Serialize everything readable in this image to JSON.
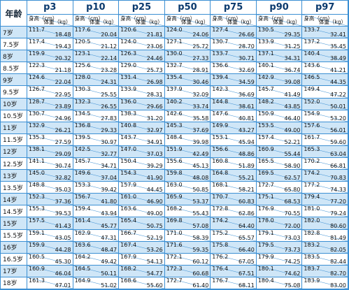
{
  "header": {
    "age_label": "年龄",
    "percentiles": [
      "p3",
      "p10",
      "p25",
      "p50",
      "p75",
      "p90",
      "p97"
    ],
    "height_label": "身高（cm）",
    "weight_label": "体重（kg）"
  },
  "rows": [
    {
      "age": "7岁",
      "cells": [
        [
          "111.7",
          "18.48"
        ],
        [
          "117.6",
          "20.04"
        ],
        [
          "120.6",
          "21.81"
        ],
        [
          "124.0",
          "24.06"
        ],
        [
          "127.4",
          "26.66"
        ],
        [
          "130.5",
          "29.35"
        ],
        [
          "133.7",
          "32.41"
        ]
      ]
    },
    {
      "age": "7.5岁",
      "cells": [
        [
          "117.4",
          "19.43"
        ],
        [
          "120.5",
          "21.12"
        ],
        [
          "124.0",
          "23.06"
        ],
        [
          "127.1",
          "25.72"
        ],
        [
          "130.7",
          "28.70"
        ],
        [
          "133.9",
          "31.25"
        ],
        [
          "137.2",
          "35.45"
        ]
      ]
    },
    {
      "age": "8岁",
      "cells": [
        [
          "119.9",
          "20.32"
        ],
        [
          "123.1",
          "22.14"
        ],
        [
          "126.3",
          "24.46"
        ],
        [
          "130.0",
          "27.33"
        ],
        [
          "133.7",
          "30.71"
        ],
        [
          "137.1",
          "34.31"
        ],
        [
          "140.4",
          "38.49"
        ]
      ]
    },
    {
      "age": "8.5岁",
      "cells": [
        [
          "122.3",
          "21.18"
        ],
        [
          "125.6",
          "23.28"
        ],
        [
          "129.0",
          "25.73"
        ],
        [
          "132.7",
          "28.91"
        ],
        [
          "136.6",
          "32.69"
        ],
        [
          "140.1",
          "36.74"
        ],
        [
          "143.6",
          "41.21"
        ]
      ]
    },
    {
      "age": "9岁",
      "cells": [
        [
          "124.6",
          "22.04"
        ],
        [
          "128.0",
          "24.31"
        ],
        [
          "131.4",
          "26.98"
        ],
        [
          "135.4",
          "30.46"
        ],
        [
          "139.4",
          "34.59"
        ],
        [
          "142.9",
          "39.08"
        ],
        [
          "146.5",
          "44.35"
        ]
      ]
    },
    {
      "age": "9.5岁",
      "cells": [
        [
          "126.7",
          "22.95"
        ],
        [
          "130.3",
          "25.55"
        ],
        [
          "133.9",
          "28.31"
        ],
        [
          "137.9",
          "32.09"
        ],
        [
          "142.3",
          "36.69"
        ],
        [
          "145.7",
          "41.49"
        ],
        [
          "149.4",
          "47.22"
        ]
      ]
    },
    {
      "age": "10岁",
      "cells": [
        [
          "128.7",
          "23.89"
        ],
        [
          "132.3",
          "26.55"
        ],
        [
          "136.0",
          "29.66"
        ],
        [
          "140.2",
          "33.74"
        ],
        [
          "144.8",
          "38.61"
        ],
        [
          "148.2",
          "43.85"
        ],
        [
          "152.0",
          "50.01"
        ]
      ]
    },
    {
      "age": "10.5岁",
      "cells": [
        [
          "130.7",
          "24.96"
        ],
        [
          "134.5",
          "27.83"
        ],
        [
          "138.3",
          "31.20"
        ],
        [
          "142.6",
          "35.58"
        ],
        [
          "147.6",
          "40.81"
        ],
        [
          "150.9",
          "46.40"
        ],
        [
          "154.9",
          "53.20"
        ]
      ]
    },
    {
      "age": "11岁",
      "cells": [
        [
          "132.9",
          "26.21"
        ],
        [
          "136.8",
          "29.33"
        ],
        [
          "140.8",
          "32.97"
        ],
        [
          "145.3",
          "37.69"
        ],
        [
          "149.9",
          "43.27"
        ],
        [
          "153.5",
          "49.00"
        ],
        [
          "157.6",
          "56.01"
        ]
      ]
    },
    {
      "age": "11.5岁",
      "cells": [
        [
          "135.3",
          "27.59"
        ],
        [
          "139.5",
          "30.97"
        ],
        [
          "143.7",
          "34.91"
        ],
        [
          "148.4",
          "39.98"
        ],
        [
          "153.1",
          "45.94"
        ],
        [
          "157.4",
          "52.21"
        ],
        [
          "161.7",
          "59.60"
        ]
      ]
    },
    {
      "age": "12岁",
      "cells": [
        [
          "138.1",
          "29.09"
        ],
        [
          "142.5",
          "32.77"
        ],
        [
          "147.0",
          "37.03"
        ],
        [
          "151.9",
          "42.49"
        ],
        [
          "156.6",
          "48.86"
        ],
        [
          "160.9",
          "55.44"
        ],
        [
          "165.3",
          "63.04"
        ]
      ]
    },
    {
      "age": "12.5岁",
      "cells": [
        [
          "141.1",
          "30.74"
        ],
        [
          "145.7",
          "34.71"
        ],
        [
          "150.4",
          "39.29"
        ],
        [
          "155.6",
          "45.13"
        ],
        [
          "160.8",
          "51.89"
        ],
        [
          "165.5",
          "58.90"
        ],
        [
          "170.2",
          "66.81"
        ]
      ]
    },
    {
      "age": "13岁",
      "cells": [
        [
          "145.0",
          "32.82"
        ],
        [
          "149.6",
          "37.04"
        ],
        [
          "154.3",
          "41.90"
        ],
        [
          "159.8",
          "48.08"
        ],
        [
          "164.8",
          "55.21"
        ],
        [
          "169.5",
          "62.57"
        ],
        [
          "174.2",
          "70.83"
        ]
      ]
    },
    {
      "age": "13.5岁",
      "cells": [
        [
          "148.8",
          "35.03"
        ],
        [
          "153.3",
          "39.42"
        ],
        [
          "157.9",
          "44.45"
        ],
        [
          "163.0",
          "50.85"
        ],
        [
          "168.1",
          "58.21"
        ],
        [
          "172.7",
          "65.80"
        ],
        [
          "177.2",
          "74.33"
        ]
      ]
    },
    {
      "age": "14岁",
      "cells": [
        [
          "152.3",
          "37.36"
        ],
        [
          "156.7",
          "41.80"
        ],
        [
          "161.0",
          "46.90"
        ],
        [
          "165.9",
          "53.37"
        ],
        [
          "170.7",
          "60.83"
        ],
        [
          "175.1",
          "68.53"
        ],
        [
          "179.4",
          "77.20"
        ]
      ]
    },
    {
      "age": "14.5岁",
      "cells": [
        [
          "155.3",
          "39.53"
        ],
        [
          "159.4",
          "43.94"
        ],
        [
          "163.6",
          "49.00"
        ],
        [
          "168.2",
          "55.43"
        ],
        [
          "172.8",
          "62.86"
        ],
        [
          "176.9",
          "70.55"
        ],
        [
          "181.0",
          "79.24"
        ]
      ]
    },
    {
      "age": "15岁",
      "cells": [
        [
          "157.5",
          "41.43"
        ],
        [
          "161.4",
          "45.77"
        ],
        [
          "165.4",
          "50.75"
        ],
        [
          "169.8",
          "57.08"
        ],
        [
          "174.2",
          "64.40"
        ],
        [
          "178.0",
          "72.00"
        ],
        [
          "182.0",
          "80.60"
        ]
      ]
    },
    {
      "age": "15.5岁",
      "cells": [
        [
          "159.1",
          "43.05"
        ],
        [
          "162.9",
          "47.31"
        ],
        [
          "166.7",
          "52.19"
        ],
        [
          "171.0",
          "58.39"
        ],
        [
          "175.2",
          "65.57"
        ],
        [
          "179.1",
          "73.03"
        ],
        [
          "182.8",
          "81.49"
        ]
      ]
    },
    {
      "age": "16岁",
      "cells": [
        [
          "159.9",
          "44.28"
        ],
        [
          "163.6",
          "48.47"
        ],
        [
          "167.4",
          "53.26"
        ],
        [
          "171.6",
          "59.35"
        ],
        [
          "175.8",
          "66.40"
        ],
        [
          "179.5",
          "73.73"
        ],
        [
          "183.2",
          "82.05"
        ]
      ]
    },
    {
      "age": "16.5岁",
      "cells": [
        [
          "160.5",
          "45.30"
        ],
        [
          "164.2",
          "49.42"
        ],
        [
          "167.9",
          "54.13"
        ],
        [
          "172.1",
          "60.12"
        ],
        [
          "176.2",
          "67.05"
        ],
        [
          "179.9",
          "74.25"
        ],
        [
          "183.5",
          "82.44"
        ]
      ]
    },
    {
      "age": "17岁",
      "cells": [
        [
          "160.9",
          "46.04"
        ],
        [
          "164.5",
          "50.11"
        ],
        [
          "168.2",
          "54.77"
        ],
        [
          "172.3",
          "60.68"
        ],
        [
          "176.4",
          "67.51"
        ],
        [
          "180.1",
          "74.62"
        ],
        [
          "183.7",
          "82.70"
        ]
      ]
    },
    {
      "age": "18岁",
      "cells": [
        [
          "161.3",
          "47.01"
        ],
        [
          "164.9",
          "51.02"
        ],
        [
          "168.6",
          "55.60"
        ],
        [
          "172.7",
          "61.40"
        ],
        [
          "176.7",
          "68.11"
        ],
        [
          "180.4",
          "75.08"
        ],
        [
          "183.9",
          "83.00"
        ]
      ]
    }
  ]
}
